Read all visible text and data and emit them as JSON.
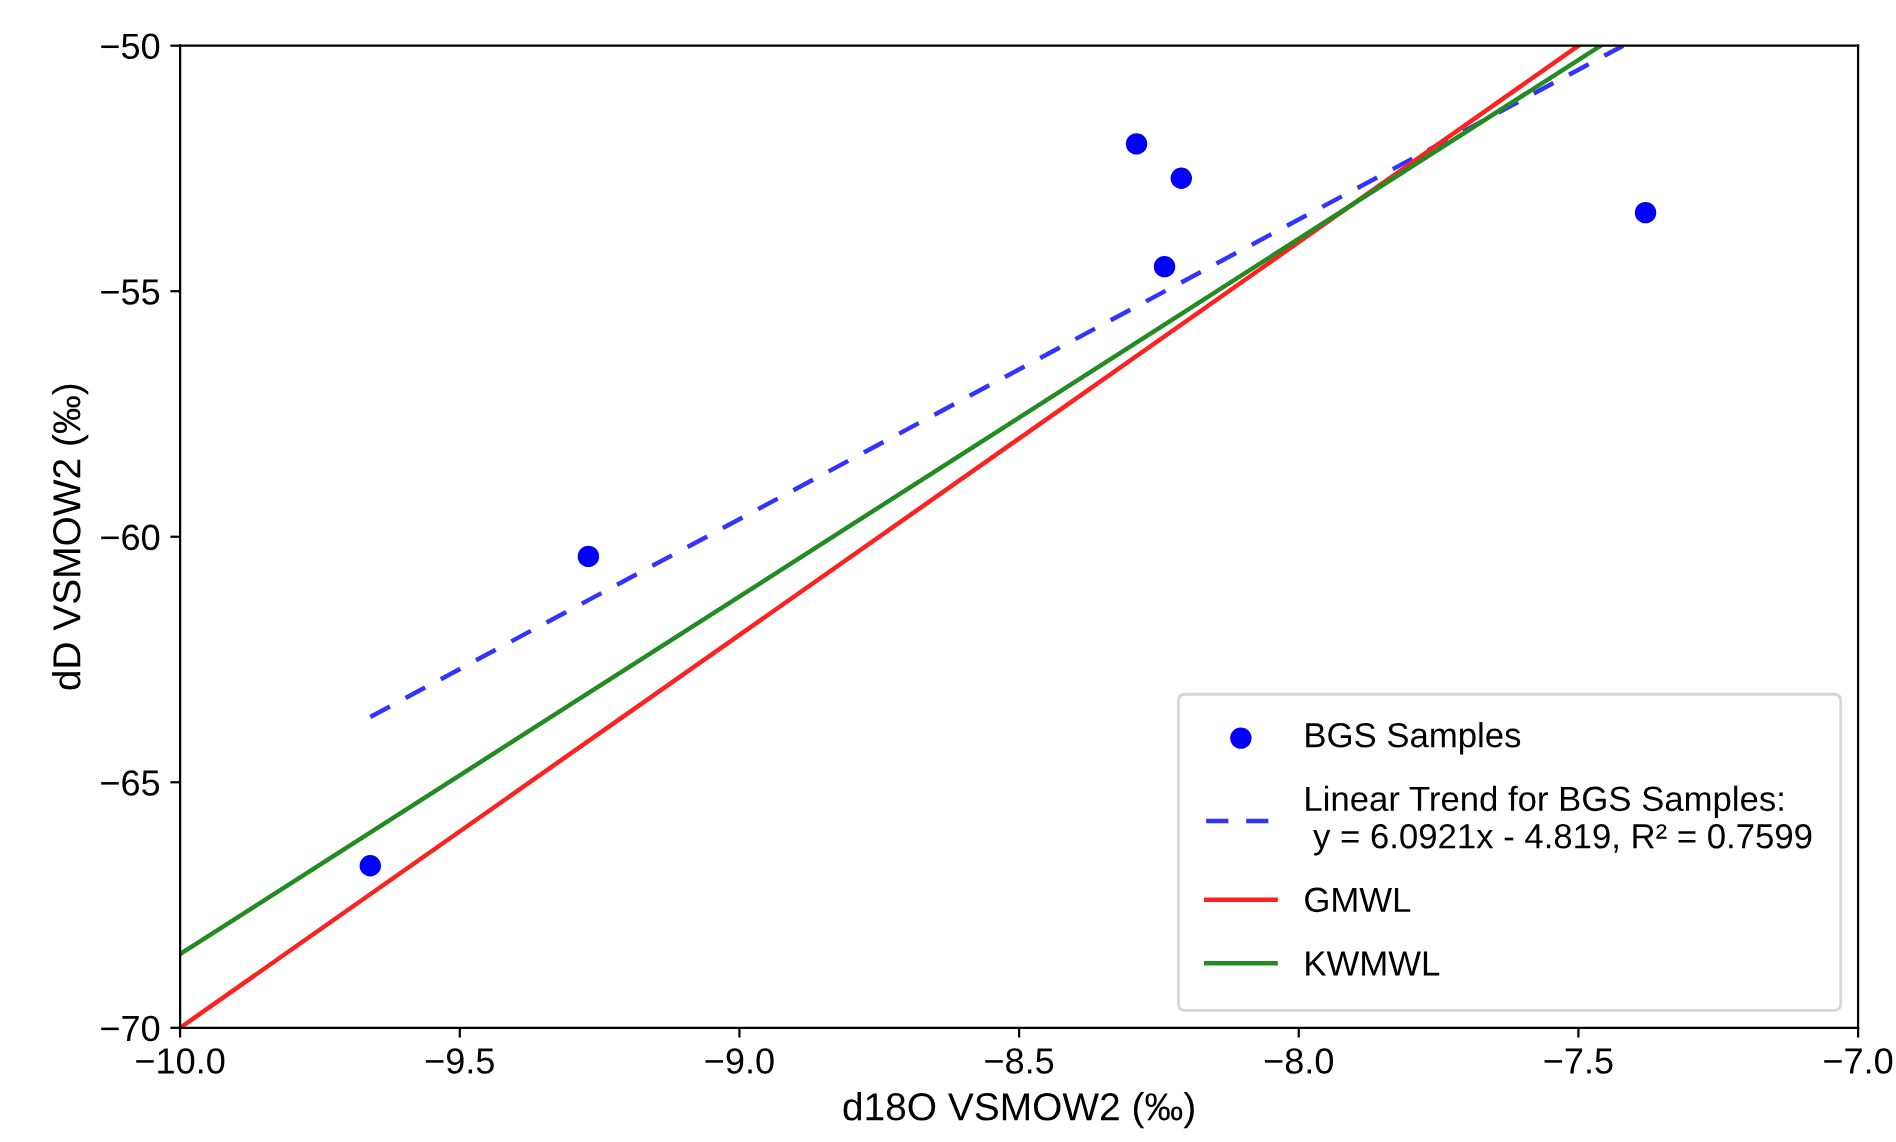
{
  "chart_data": {
    "type": "scatter",
    "xlabel": "d18O VSMOW2 (‰)",
    "ylabel": "dD VSMOW2 (‰)",
    "xlim": [
      -10.0,
      -7.0
    ],
    "xticks": [
      {
        "value": -10,
        "label": "−10.0"
      },
      {
        "value": -9.5,
        "label": "−9.5"
      },
      {
        "value": -9,
        "label": "−9.0"
      },
      {
        "value": -8.5,
        "label": "−8.5"
      },
      {
        "value": -8,
        "label": "−8.0"
      },
      {
        "value": -7.5,
        "label": "−7.5"
      },
      {
        "value": -7,
        "label": "−7.0"
      }
    ],
    "ylim": [
      -70,
      -50
    ],
    "yticks": [
      -70,
      -65,
      -60,
      -55,
      -50
    ],
    "grid": false,
    "legend": "bottom right",
    "series": [
      {
        "name": "BGS Samples",
        "color": "#0000ff",
        "marker": "circle",
        "x": [
          -8.29,
          -8.21,
          -8.24,
          -7.38,
          -9.27,
          -9.66
        ],
        "values": [
          -52.0,
          -52.7,
          -54.5,
          -53.4,
          -60.4,
          -66.7
        ]
      },
      {
        "name": "Linear Trend for BGS Samples:\n y = 6.0921x - 4.819, R² = 0.7599",
        "type": "line",
        "line_style": "dashed",
        "color": "#3333ff",
        "x": [
          -9.66,
          -7.42
        ],
        "values": [
          -63.67,
          -50.0
        ]
      },
      {
        "name": "GMWL",
        "type": "line",
        "line_style": "solid",
        "color": "#ff2020",
        "x": [
          -10.0,
          -7.5
        ],
        "values": [
          -70.0,
          -50.0
        ]
      },
      {
        "name": "KWMWL",
        "type": "line",
        "line_style": "solid",
        "color": "#228b22",
        "x": [
          -10.0,
          -7.46
        ],
        "values": [
          -68.5,
          -50.0
        ]
      }
    ]
  }
}
